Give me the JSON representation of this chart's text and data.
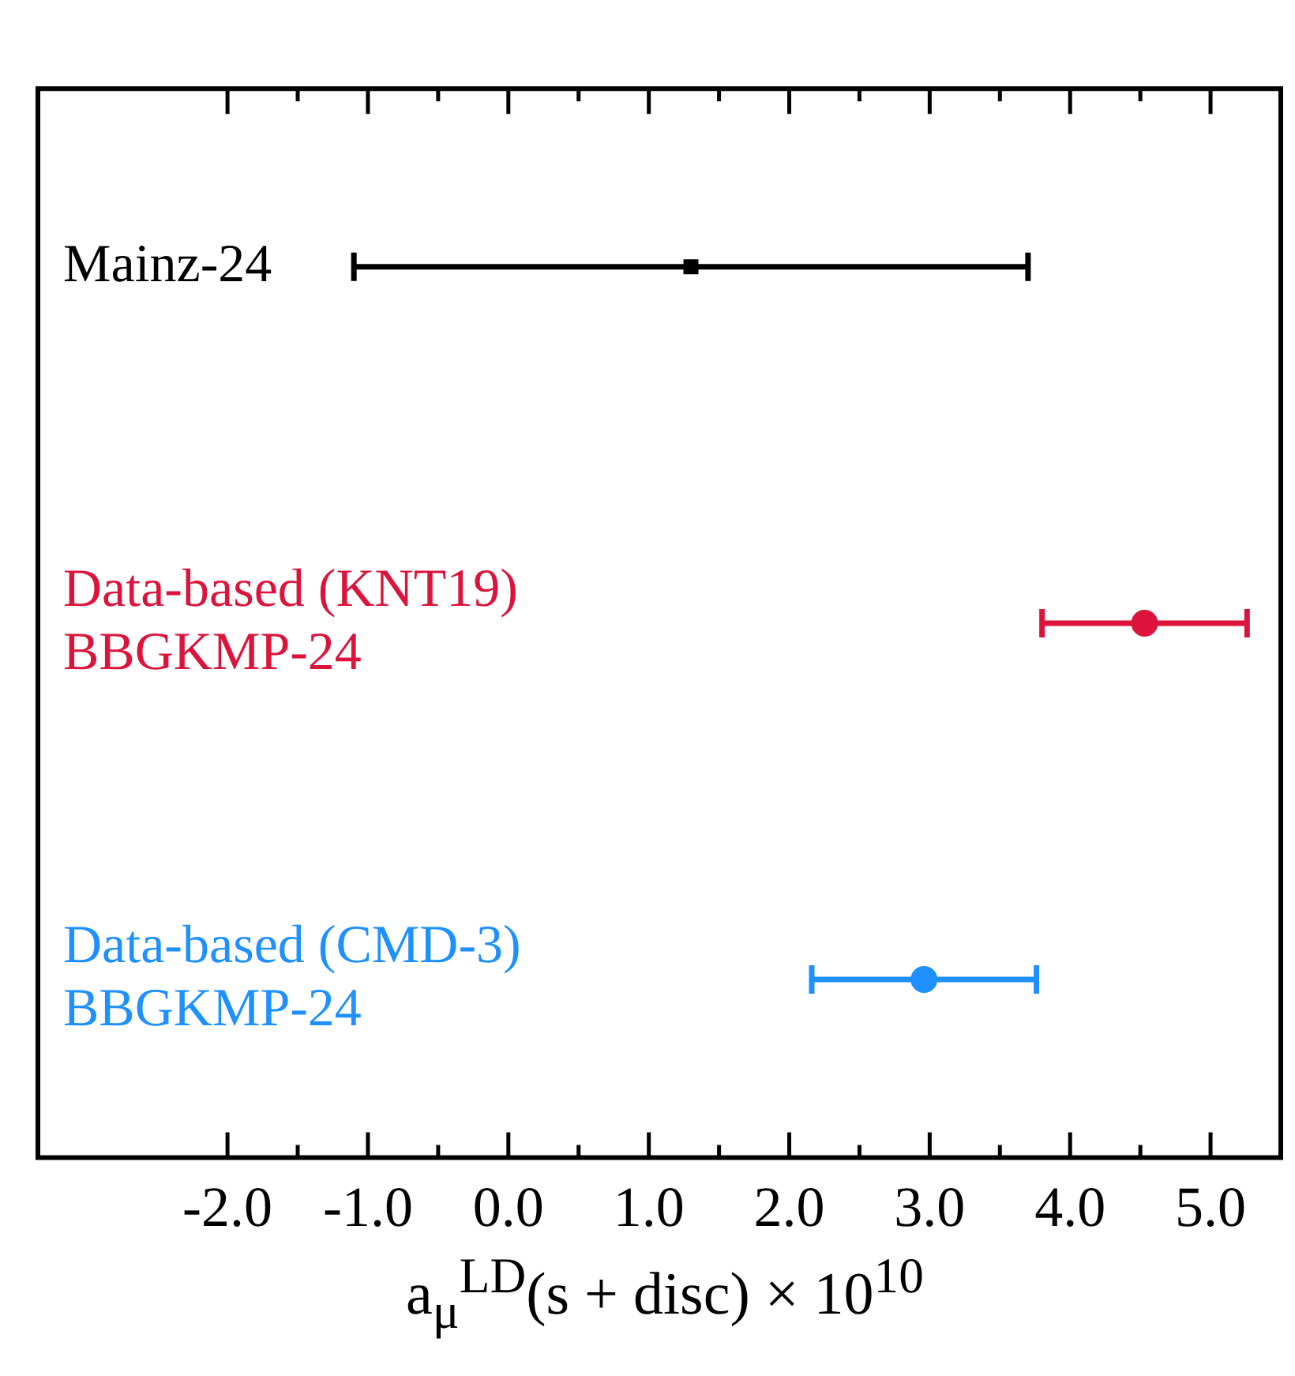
{
  "chart_data": {
    "type": "scatter",
    "orientation": "horizontal",
    "categories": [
      "Mainz-24",
      "Data-based (KNT19)\nBBGKMP-24",
      "Data-based (CMD-3)\nBBGKMP-24"
    ],
    "xlabel": "a$_{μ}$$^{LD}$(s + disc) × 10$^{10}$",
    "xlim": [
      -3.35,
      5.5
    ],
    "xticks": [
      {
        "value": -2,
        "label": "-2.0"
      },
      {
        "value": -1.5,
        "label": null
      },
      {
        "value": -1,
        "label": "-1.0"
      },
      {
        "value": -0.5,
        "label": null
      },
      {
        "value": 0,
        "label": "0.0"
      },
      {
        "value": 0.5,
        "label": null
      },
      {
        "value": 1,
        "label": "1.0"
      },
      {
        "value": 1.5,
        "label": null
      },
      {
        "value": 2,
        "label": "2.0"
      },
      {
        "value": 2.5,
        "label": null
      },
      {
        "value": 3,
        "label": "3.0"
      },
      {
        "value": 3.5,
        "label": null
      },
      {
        "value": 4,
        "label": "4.0"
      },
      {
        "value": 4.5,
        "label": null
      },
      {
        "value": 5,
        "label": "5.0"
      }
    ],
    "series": [
      {
        "color": "#000000",
        "marker": "square",
        "values": [
          1.3,
          null,
          null
        ],
        "errors": [
          2.4,
          null,
          null
        ]
      },
      {
        "color": "#dc143c",
        "marker": "circle",
        "values": [
          null,
          4.53,
          null
        ],
        "errors": [
          null,
          0.73,
          null
        ]
      },
      {
        "color": "#1e90ff",
        "marker": "circle",
        "values": [
          null,
          null,
          2.96
        ],
        "errors": [
          null,
          null,
          0.8
        ]
      }
    ]
  }
}
